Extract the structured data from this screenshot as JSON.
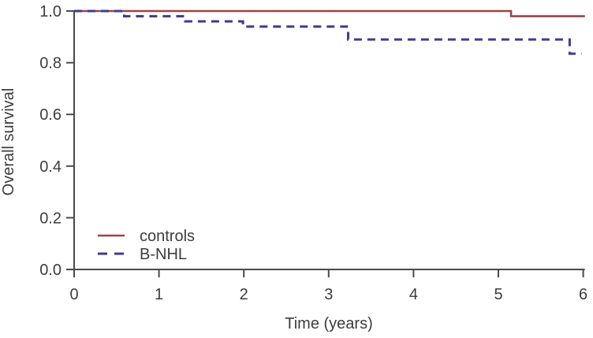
{
  "figure": {
    "background": "#ffffff",
    "axis_color": "#4a4a4a",
    "text_color": "#3d3d3d"
  },
  "chart_data": {
    "type": "line",
    "subtype": "kaplan-meier-step",
    "title": "",
    "xlabel": "Time (years)",
    "ylabel": "Overall survival",
    "xlim": [
      0,
      6
    ],
    "ylim": [
      0.0,
      1.0
    ],
    "x_ticks": [
      "0",
      "1",
      "2",
      "3",
      "4",
      "5",
      "6"
    ],
    "y_ticks": [
      "0.0",
      "0.2",
      "0.4",
      "0.6",
      "0.8",
      "1.0"
    ],
    "grid": false,
    "legend_position": "inside-bottom-left",
    "series": [
      {
        "name": "controls",
        "color": "#9c4444",
        "style": "solid",
        "x": [
          0,
          5.15,
          5.15,
          6.02
        ],
        "y": [
          1.0,
          1.0,
          0.98,
          0.98
        ]
      },
      {
        "name": "B-NHL",
        "color": "#3c3c94",
        "style": "dashed",
        "x": [
          0,
          0.59,
          0.59,
          1.31,
          1.31,
          1.99,
          1.99,
          3.23,
          3.23,
          5.84,
          5.84,
          5.98
        ],
        "y": [
          1.0,
          1.0,
          0.98,
          0.98,
          0.96,
          0.96,
          0.94,
          0.94,
          0.89,
          0.89,
          0.835,
          0.835
        ]
      }
    ]
  }
}
